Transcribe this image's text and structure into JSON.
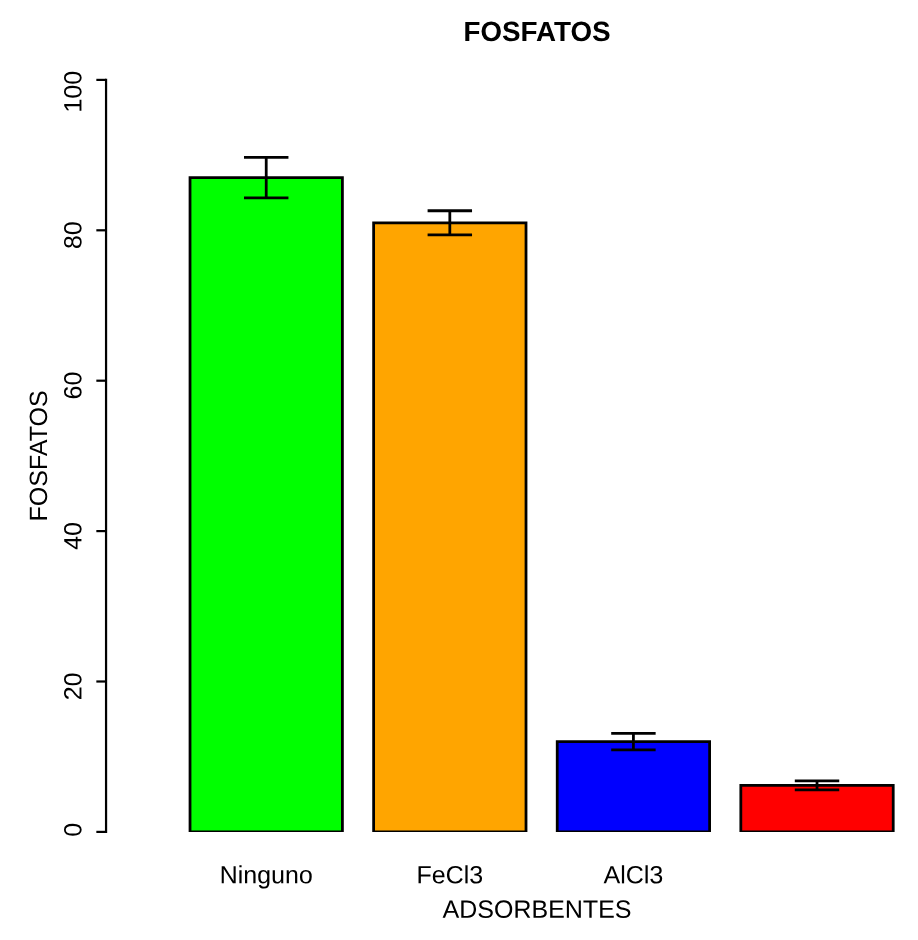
{
  "chart_data": {
    "type": "bar",
    "title": "FOSFATOS",
    "xlabel": "ADSORBENTES",
    "ylabel": "FOSFATOS",
    "categories": [
      "Ninguno",
      "FeCl3",
      "AlCl3",
      null
    ],
    "values": [
      87,
      81,
      12,
      6.2
    ],
    "colors": [
      "#00ff00",
      "#ffa500",
      "#0000ff",
      "#ff0000"
    ],
    "errors": [
      2.7,
      1.6,
      1.1,
      0.6
    ],
    "ylim": [
      0,
      100
    ],
    "yticks": [
      0,
      20,
      40,
      60,
      80,
      100
    ],
    "grid": false,
    "legend": false
  }
}
